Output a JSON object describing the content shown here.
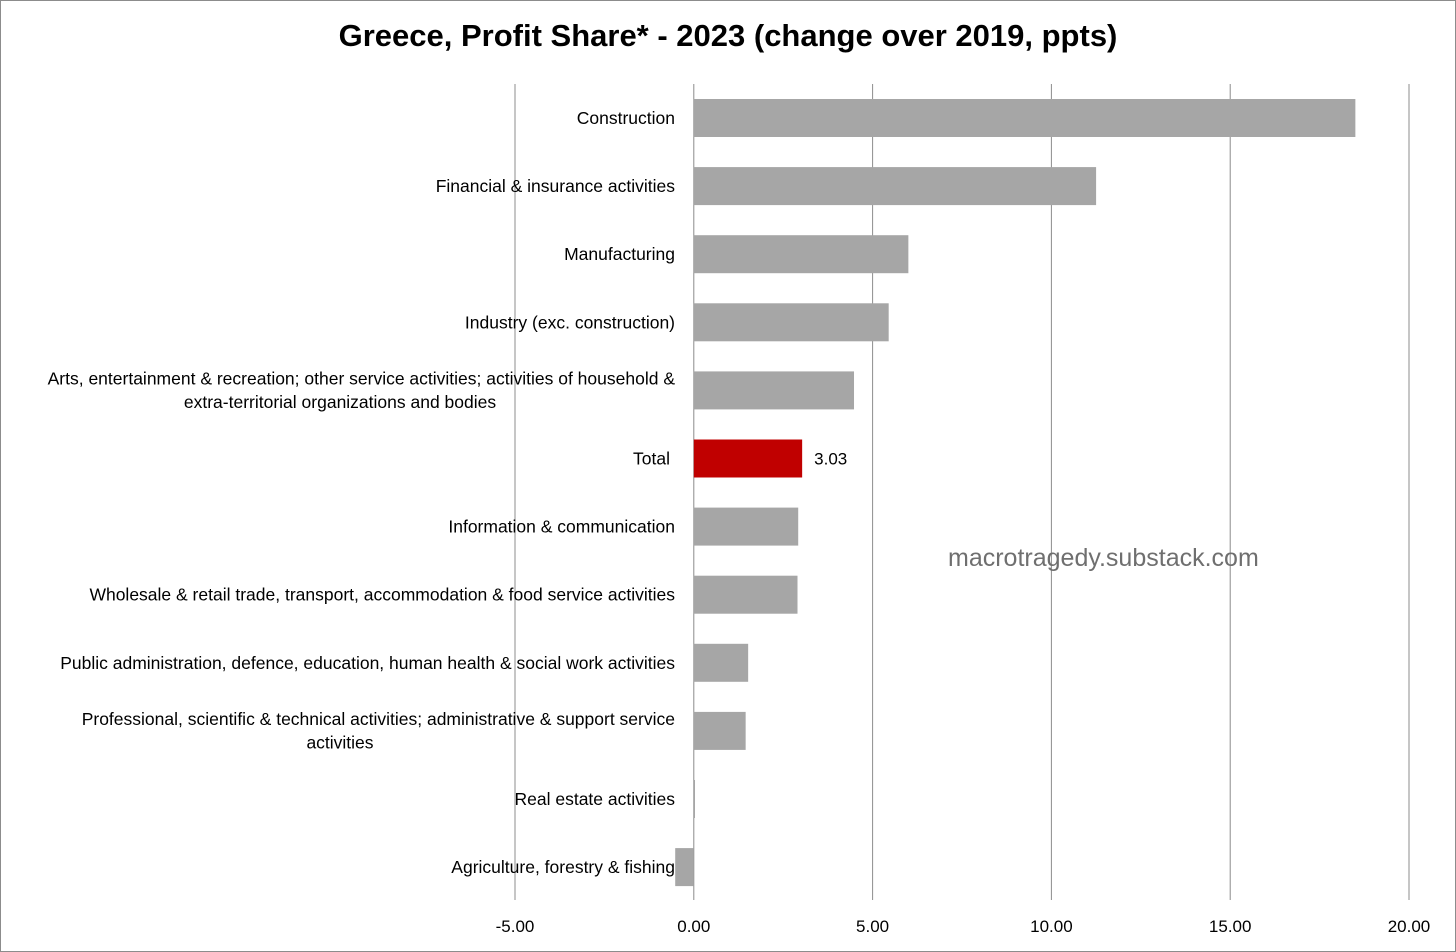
{
  "chart_data": {
    "type": "bar",
    "orientation": "horizontal",
    "title": "Greece, Profit Share* - 2023 (change over 2019, ppts)",
    "xlabel": "",
    "ylabel": "",
    "xlim": [
      -5,
      20
    ],
    "x_ticks": [
      "-5.00",
      "0.00",
      "5.00",
      "10.00",
      "15.00",
      "20.00"
    ],
    "x_tick_values": [
      -5,
      0,
      5,
      10,
      15,
      20
    ],
    "grid": "vertical",
    "legend": "none",
    "categories": [
      [
        "Construction"
      ],
      [
        "Financial & insurance activities"
      ],
      [
        "Manufacturing"
      ],
      [
        "Industry (exc. construction)"
      ],
      [
        "Arts, entertainment & recreation; other service activities; activities of household &",
        "extra-territorial organizations and bodies"
      ],
      [
        "Total"
      ],
      [
        "Information & communication"
      ],
      [
        "Wholesale & retail trade, transport, accommodation & food service activities"
      ],
      [
        "Public administration, defence, education, human health & social work activities"
      ],
      [
        "Professional, scientific & technical activities; administrative & support service",
        "activities"
      ],
      [
        "Real estate activities"
      ],
      [
        "Agriculture, forestry & fishing"
      ]
    ],
    "values": [
      18.5,
      11.25,
      6.0,
      5.45,
      4.48,
      3.03,
      2.92,
      2.9,
      1.52,
      1.45,
      0.02,
      -0.52
    ],
    "bar_colors": [
      "#a6a6a6",
      "#a6a6a6",
      "#a6a6a6",
      "#a6a6a6",
      "#a6a6a6",
      "#c00000",
      "#a6a6a6",
      "#a6a6a6",
      "#a6a6a6",
      "#a6a6a6",
      "#a6a6a6",
      "#a6a6a6"
    ],
    "data_labels": [
      null,
      null,
      null,
      null,
      null,
      "3.03",
      null,
      null,
      null,
      null,
      null,
      null
    ]
  },
  "watermark": "macrotragedy.substack.com",
  "colors": {
    "bar": "#a6a6a6",
    "highlight": "#c00000",
    "grid": "#8c8c8c"
  }
}
